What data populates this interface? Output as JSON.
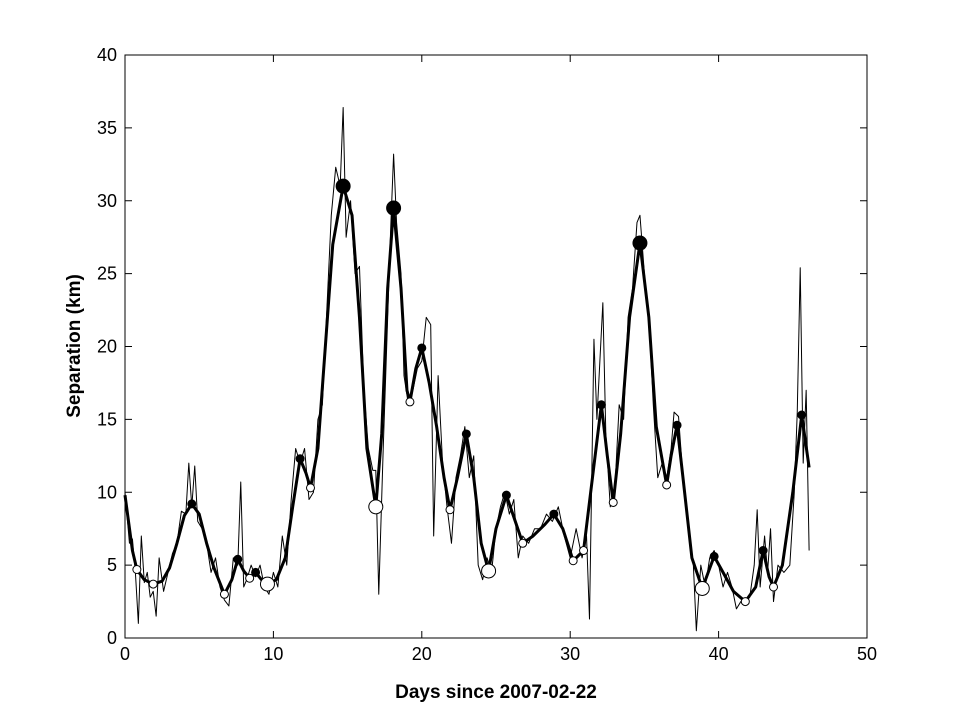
{
  "chart_data": {
    "type": "line",
    "xlabel": "Days since 2007-02-22",
    "ylabel": "Separation (km)",
    "xlim": [
      0,
      50
    ],
    "xticks": [
      0,
      10,
      20,
      30,
      40,
      50
    ],
    "ylim": [
      0,
      40
    ],
    "yticks": [
      0,
      5,
      10,
      15,
      20,
      25,
      30,
      35,
      40
    ],
    "grid": false,
    "series": [
      {
        "type": "line",
        "color": "#000000",
        "width": 1,
        "x": [
          0,
          0.3,
          0.5,
          0.7,
          0.9,
          1.1,
          1.3,
          1.5,
          1.7,
          1.9,
          2.1,
          2.3,
          2.6,
          2.9,
          3.2,
          3.5,
          3.8,
          4.1,
          4.3,
          4.5,
          4.7,
          4.9,
          5.2,
          5.5,
          5.8,
          6.1,
          6.4,
          6.7,
          7,
          7.3,
          7.6,
          7.8,
          8,
          8.2,
          8.5,
          8.8,
          9.1,
          9.4,
          9.7,
          10,
          10.3,
          10.6,
          10.9,
          11.2,
          11.5,
          11.8,
          12.1,
          12.4,
          12.7,
          13,
          13.3,
          13.6,
          13.9,
          14.2,
          14.5,
          14.7,
          14.9,
          15.2,
          15.5,
          15.8,
          16.1,
          16.4,
          16.7,
          16.9,
          17.1,
          17.4,
          17.7,
          17.9,
          18.1,
          18.3,
          18.6,
          18.8,
          19.1,
          19.4,
          19.7,
          20,
          20.3,
          20.6,
          20.8,
          21.1,
          21.4,
          21.7,
          22,
          22.3,
          22.6,
          22.9,
          23.2,
          23.5,
          23.8,
          24.1,
          24.4,
          24.7,
          25,
          25.3,
          25.6,
          25.9,
          26.2,
          26.5,
          26.8,
          27.2,
          27.6,
          28,
          28.4,
          28.8,
          29.2,
          29.6,
          30,
          30.4,
          30.8,
          31.1,
          31.3,
          31.6,
          31.8,
          32,
          32.2,
          32.4,
          32.7,
          33,
          33.3,
          33.6,
          33.9,
          34.2,
          34.5,
          34.7,
          35,
          35.3,
          35.6,
          35.9,
          36.2,
          36.5,
          36.8,
          37,
          37.3,
          37.6,
          37.9,
          38.1,
          38.3,
          38.5,
          38.8,
          39.1,
          39.4,
          39.7,
          40,
          40.3,
          40.6,
          40.9,
          41.2,
          41.5,
          41.8,
          42.1,
          42.4,
          42.6,
          42.8,
          43.1,
          43.3,
          43.5,
          43.7,
          44,
          44.4,
          44.8,
          45.1,
          45.3,
          45.5,
          45.7,
          45.9,
          46.1
        ],
        "values": [
          10,
          6.5,
          6.8,
          4.5,
          1,
          7,
          3.8,
          4.5,
          2.8,
          3.2,
          1.5,
          5.5,
          3.2,
          4.5,
          5.8,
          6.5,
          8.7,
          8.5,
          12,
          9,
          11.8,
          8,
          7.5,
          6.5,
          4.5,
          5.5,
          3.5,
          2.6,
          2.2,
          5.5,
          5,
          10.7,
          3.5,
          4,
          5,
          4.2,
          5,
          3.5,
          3,
          4.5,
          3.5,
          7,
          5,
          9.5,
          13,
          12,
          13,
          9.5,
          10,
          15,
          16,
          22.5,
          29,
          32.3,
          31,
          36.4,
          27.5,
          30,
          25,
          25.5,
          17,
          13,
          11.5,
          11.5,
          3,
          13,
          22,
          28,
          33.2,
          28.5,
          25,
          18,
          16,
          17,
          18.5,
          19,
          22,
          21.5,
          7,
          18,
          12,
          9,
          6.5,
          11,
          12.5,
          14.5,
          11,
          12.5,
          5,
          4,
          5.5,
          4.5,
          7.5,
          9,
          10,
          8.5,
          9.5,
          5.5,
          7,
          6.5,
          7.5,
          7.5,
          8.5,
          8,
          9,
          7,
          5.5,
          7.5,
          5.5,
          7,
          1.3,
          20.5,
          15,
          19,
          23,
          14,
          9,
          10,
          16,
          15,
          22,
          24,
          28.5,
          29,
          25,
          22,
          16,
          11,
          12,
          11,
          13,
          15.5,
          15.2,
          11,
          8,
          6,
          5,
          0.5,
          5,
          3.5,
          5.5,
          6,
          5,
          3.5,
          4.5,
          3.5,
          2,
          2.5,
          2.5,
          2.8,
          5,
          8.8,
          3.5,
          7,
          4.5,
          7.5,
          2.5,
          5,
          4.5,
          5,
          10,
          15.5,
          25.4,
          12,
          17,
          6
        ]
      },
      {
        "type": "line",
        "color": "#000000",
        "width": 3,
        "x": [
          0,
          0.5,
          0.8,
          1.3,
          1.9,
          2.5,
          3,
          3.5,
          4,
          4.5,
          5,
          5.5,
          6,
          6.7,
          7.2,
          7.6,
          8,
          8.4,
          8.8,
          9.2,
          9.6,
          10.2,
          10.8,
          11.3,
          11.8,
          12.2,
          12.5,
          13,
          13.5,
          14,
          14.7,
          15.3,
          15.8,
          16.3,
          16.9,
          17.3,
          17.7,
          18.1,
          18.6,
          19,
          19.2,
          19.6,
          20,
          20.5,
          21,
          21.5,
          21.9,
          22.4,
          23,
          23.5,
          24,
          24.5,
          25,
          25.7,
          26.3,
          26.8,
          27.5,
          28.3,
          28.9,
          29.5,
          30.2,
          30.9,
          31.5,
          32.1,
          32.5,
          32.9,
          33.4,
          34,
          34.7,
          35.3,
          35.8,
          36.5,
          36.8,
          37.2,
          37.6,
          38.2,
          38.9,
          39.3,
          39.7,
          40.3,
          41,
          41.8,
          42.5,
          43,
          43.4,
          43.7,
          44.3,
          45,
          45.6,
          46.1
        ],
        "values": [
          9.8,
          6,
          4.7,
          4,
          3.7,
          3.9,
          4.8,
          6.5,
          8.4,
          9.2,
          8.5,
          6.5,
          4.8,
          3,
          4,
          5.4,
          4.6,
          4.1,
          4.5,
          4,
          3.7,
          4,
          5.5,
          9,
          12.3,
          11.3,
          10.3,
          13,
          20,
          27,
          31,
          29,
          22,
          13,
          9,
          14,
          24,
          29.5,
          24,
          17,
          16.2,
          18.5,
          19.9,
          17.5,
          14.5,
          11,
          8.8,
          11,
          14,
          11,
          6.5,
          4.6,
          7.5,
          9.8,
          8,
          6.5,
          7,
          7.8,
          8.5,
          7.5,
          5.3,
          6,
          11,
          16,
          12.5,
          9.3,
          14,
          22,
          27.1,
          22,
          14.5,
          10.5,
          12.5,
          14.6,
          11,
          5.5,
          3.4,
          4.5,
          5.6,
          4.5,
          3.2,
          2.5,
          3.5,
          6,
          4.2,
          3.5,
          5,
          10,
          15.3,
          11.7
        ]
      },
      {
        "type": "scatter",
        "color": "#000000",
        "marker": "filled",
        "x": [
          4.5,
          7.6,
          8.8,
          11.8,
          14.7,
          18.1,
          20,
          23,
          25.7,
          28.9,
          32.1,
          34.7,
          37.2,
          39.7,
          43,
          45.6
        ],
        "values": [
          9.2,
          5.4,
          4.5,
          12.3,
          31,
          29.5,
          19.9,
          14,
          9.8,
          8.5,
          16,
          27.1,
          14.6,
          5.6,
          6,
          15.3
        ],
        "sizes": [
          4,
          4,
          4,
          4,
          7,
          7,
          4,
          4,
          4,
          4,
          4,
          7,
          4,
          4,
          4,
          4
        ]
      },
      {
        "type": "scatter",
        "color": "#000000",
        "marker": "open",
        "x": [
          0.8,
          1.9,
          6.7,
          8.4,
          9.6,
          12.5,
          16.9,
          19.2,
          21.9,
          24.5,
          26.8,
          30.2,
          30.9,
          32.9,
          36.5,
          38.9,
          41.8,
          43.7
        ],
        "values": [
          4.7,
          3.7,
          3,
          4.1,
          3.7,
          10.3,
          9,
          16.2,
          8.8,
          4.6,
          6.5,
          5.3,
          6,
          9.3,
          10.5,
          3.4,
          2.5,
          3.5
        ],
        "sizes": [
          4,
          4,
          4,
          4,
          7,
          4,
          7,
          4,
          4,
          7,
          4,
          4,
          4,
          4,
          4,
          7,
          4,
          4
        ]
      }
    ]
  }
}
